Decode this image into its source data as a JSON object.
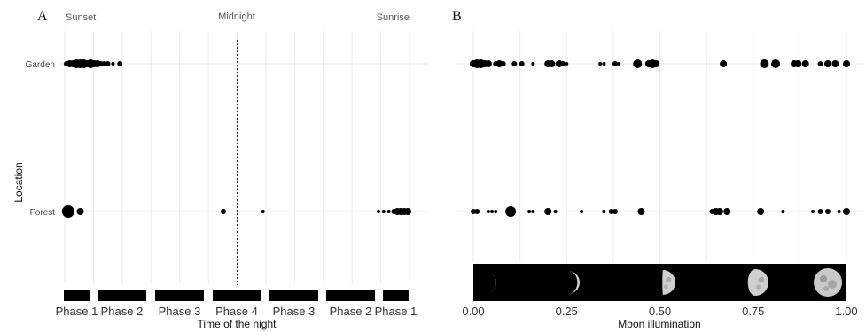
{
  "chart_data": [
    {
      "panel": "A",
      "type": "scatter",
      "xlabel": "Time of the night",
      "ylabel": "Location",
      "categories_y": [
        "Garden",
        "Forest"
      ],
      "phase_labels": [
        "Phase 1",
        "Phase 2",
        "Phase 3",
        "Phase 4",
        "Phase 3",
        "Phase 2",
        "Phase 1"
      ],
      "annotations": {
        "sunset": "Sunset",
        "midnight": "Midnight",
        "sunrise": "Sunrise"
      },
      "xlim": [
        0,
        1
      ],
      "midnight_x": 0.5,
      "grid": true,
      "series": [
        {
          "location": "Garden",
          "x": [
            0.005,
            0.015,
            0.025,
            0.035,
            0.045,
            0.055,
            0.065,
            0.075,
            0.085,
            0.095,
            0.105,
            0.115,
            0.125,
            0.14,
            0.16
          ],
          "size": [
            3,
            4,
            4,
            5,
            5,
            5,
            4,
            5,
            4,
            4,
            3,
            3,
            3,
            2,
            3
          ]
        },
        {
          "location": "Forest",
          "x": [
            0.01,
            0.045,
            0.46,
            0.575,
            0.91,
            0.925,
            0.94,
            0.955,
            0.965,
            0.975,
            0.985,
            0.995
          ],
          "size": [
            7,
            4,
            3,
            2,
            2,
            2,
            2,
            3,
            4,
            4,
            4,
            4
          ]
        }
      ]
    },
    {
      "panel": "B",
      "type": "scatter",
      "xlabel": "Moon illumination",
      "categories_y": [
        "Garden",
        "Forest"
      ],
      "x_ticks": [
        "0.00",
        "0.25",
        "0.50",
        "0.75",
        "1.00"
      ],
      "xlim": [
        0,
        1
      ],
      "grid": true,
      "moon_strip": true,
      "series": [
        {
          "location": "Garden",
          "x": [
            0.0,
            0.01,
            0.02,
            0.03,
            0.04,
            0.06,
            0.07,
            0.08,
            0.11,
            0.13,
            0.16,
            0.2,
            0.21,
            0.23,
            0.24,
            0.25,
            0.34,
            0.35,
            0.38,
            0.39,
            0.44,
            0.47,
            0.48,
            0.49,
            0.67,
            0.78,
            0.81,
            0.86,
            0.87,
            0.89,
            0.93,
            0.95,
            0.97,
            1.0
          ],
          "size": [
            4,
            5,
            5,
            4,
            4,
            3,
            4,
            3,
            3,
            3,
            2,
            4,
            4,
            4,
            3,
            2,
            2,
            2,
            3,
            2,
            5,
            4,
            5,
            4,
            4,
            5,
            5,
            4,
            4,
            4,
            3,
            4,
            4,
            4
          ]
        },
        {
          "location": "Forest",
          "x": [
            0.0,
            0.01,
            0.04,
            0.05,
            0.06,
            0.1,
            0.15,
            0.16,
            0.2,
            0.22,
            0.29,
            0.35,
            0.37,
            0.38,
            0.45,
            0.64,
            0.65,
            0.66,
            0.68,
            0.77,
            0.83,
            0.91,
            0.93,
            0.95,
            0.98,
            1.0
          ],
          "size": [
            3,
            3,
            2,
            2,
            2,
            6,
            2,
            2,
            4,
            2,
            2,
            2,
            3,
            3,
            4,
            3,
            4,
            4,
            4,
            4,
            2,
            2,
            3,
            3,
            2,
            4
          ]
        }
      ]
    }
  ],
  "panels": {
    "a": {
      "letter": "A",
      "ylabel": "Location"
    },
    "b": {
      "letter": "B"
    }
  }
}
